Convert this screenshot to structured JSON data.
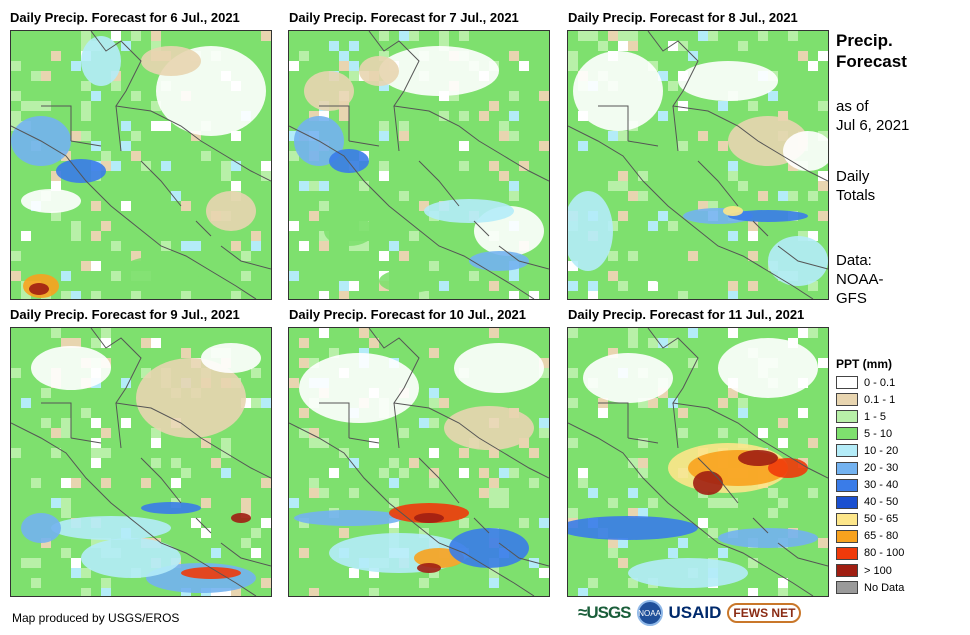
{
  "panels": [
    {
      "title": "Daily Precip. Forecast for 6 Jul., 2021"
    },
    {
      "title": "Daily Precip. Forecast for 7 Jul., 2021"
    },
    {
      "title": "Daily Precip. Forecast for 8 Jul., 2021"
    },
    {
      "title": "Daily Precip. Forecast for 9 Jul., 2021"
    },
    {
      "title": "Daily Precip. Forecast for 10 Jul., 2021"
    },
    {
      "title": "Daily Precip. Forecast for 11 Jul., 2021"
    }
  ],
  "side": {
    "title_line1": "Precip.",
    "title_line2": "Forecast",
    "asof_line1": "as of",
    "asof_line2": "Jul 6, 2021",
    "totals_line1": "Daily",
    "totals_line2": "Totals",
    "data_line1": "Data:",
    "data_line2": "NOAA-",
    "data_line3": "GFS"
  },
  "legend": {
    "title": "PPT (mm)",
    "items": [
      {
        "label": "0 - 0.1",
        "color": "#ffffff"
      },
      {
        "label": "0.1 - 1",
        "color": "#e8d5b0"
      },
      {
        "label": "1 - 5",
        "color": "#b8f0a8"
      },
      {
        "label": "5 - 10",
        "color": "#7ee06e"
      },
      {
        "label": "10 - 20",
        "color": "#b4ecf8"
      },
      {
        "label": "20 - 30",
        "color": "#73b2f0"
      },
      {
        "label": "30 - 40",
        "color": "#3a7ce8"
      },
      {
        "label": "40 - 50",
        "color": "#1a4fd0"
      },
      {
        "label": "50 - 65",
        "color": "#fde68a"
      },
      {
        "label": "65 - 80",
        "color": "#f8a21e"
      },
      {
        "label": "80 - 100",
        "color": "#f03a0a"
      },
      {
        "label": "> 100",
        "color": "#a01e12"
      },
      {
        "label": "No Data",
        "color": "#9a9a9a"
      }
    ]
  },
  "footer": {
    "credit": "Map produced by USGS/EROS",
    "logo_usgs": "≈USGS",
    "logo_noaa": "NOAA",
    "logo_usaid": "USAID",
    "logo_fews": "FEWS NET"
  }
}
